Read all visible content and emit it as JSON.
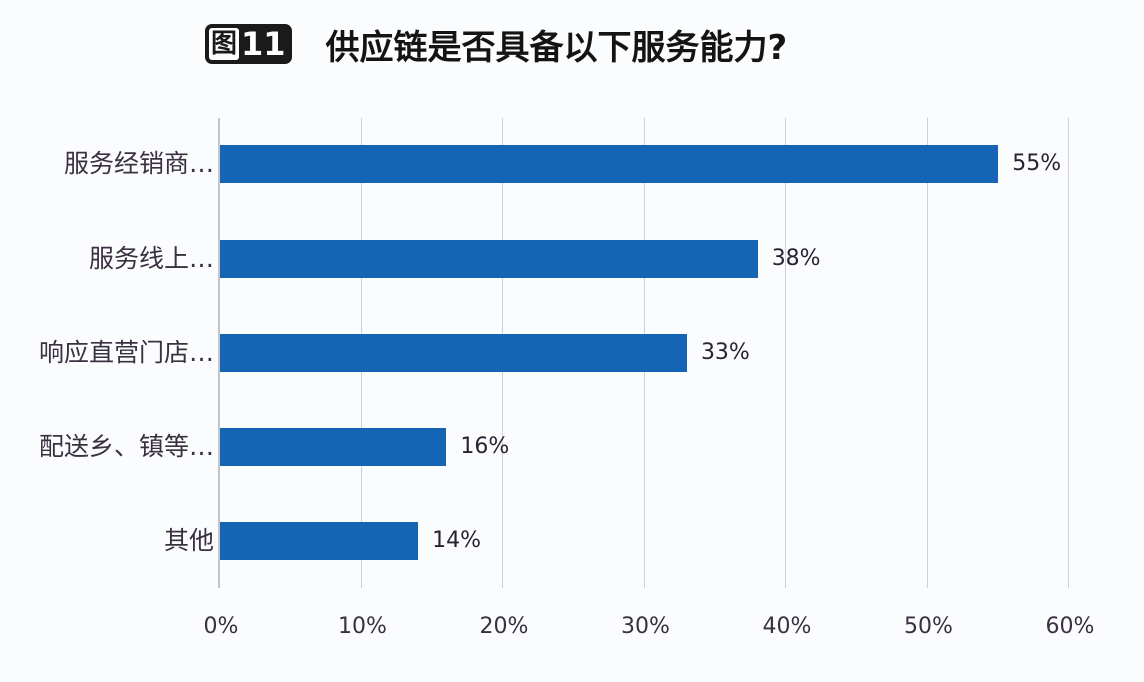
{
  "header": {
    "badge_prefix": "图",
    "badge_number": "11",
    "title": "供应链是否具备以下服务能力?"
  },
  "colors": {
    "bar": "#1565b4",
    "grid": "#cfd0d6"
  },
  "chart_data": {
    "type": "bar",
    "orientation": "horizontal",
    "title": "图11 供应链是否具备以下服务能力?",
    "categories": [
      "服务经销商…",
      "服务线上…",
      "响应直营门店…",
      "配送乡、镇等…",
      "其他"
    ],
    "values": [
      55,
      38,
      33,
      16,
      14
    ],
    "value_labels": [
      "55%",
      "38%",
      "33%",
      "16%",
      "14%"
    ],
    "xlabel": "",
    "ylabel": "",
    "xlim": [
      0,
      60
    ],
    "xticks": [
      "0%",
      "10%",
      "20%",
      "30%",
      "40%",
      "50%",
      "60%"
    ],
    "grid": true,
    "legend": null
  }
}
